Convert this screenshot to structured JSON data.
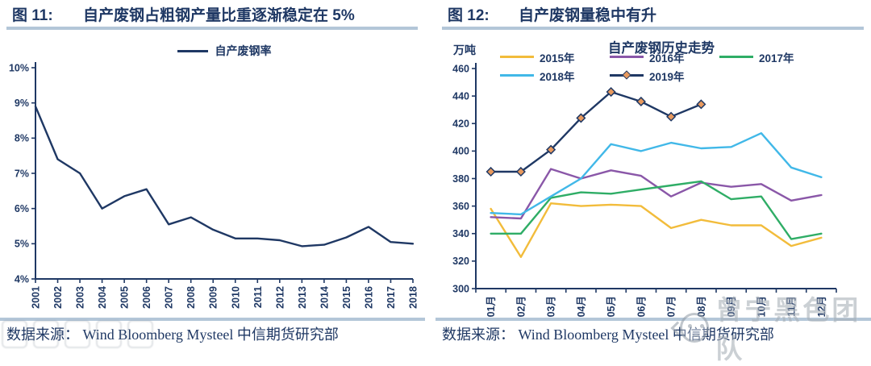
{
  "colors": {
    "navy": "#1f3864",
    "rule": "#b3c6d8",
    "gold": "#f2bc3b",
    "purple": "#8a57a8",
    "green": "#2fad66",
    "cyan": "#41b8e8",
    "diamond_fill": "#e89a5e",
    "watermark_gray": "#97a1ab"
  },
  "fig11": {
    "label": "图 11:",
    "title": "自产废钢占粗钢产量比重逐渐稳定在 5%",
    "legend_label": "自产废钢率",
    "source": "数据来源： Wind Bloomberg Mysteel 中信期货研究部"
  },
  "fig12": {
    "label": "图 12:",
    "title": "自产废钢量稳中有升",
    "unit": "万吨",
    "chart_title": "自产废钢历史走势",
    "source": "数据来源： Wind Bloomberg Mysteel 中信期货研究部",
    "watermark": "曾宁黑色团队"
  },
  "chart_data": [
    {
      "id": "fig11",
      "type": "line",
      "title": "自产废钢占粗钢产量比重逐渐稳定在 5%",
      "legend_position": "top",
      "grid": false,
      "xlabel": "",
      "ylabel": "",
      "ylim": [
        4,
        10
      ],
      "ytick_step": 1,
      "ytick_suffix": "%",
      "categories": [
        "2001",
        "2002",
        "2003",
        "2004",
        "2005",
        "2006",
        "2007",
        "2008",
        "2009",
        "2010",
        "2011",
        "2012",
        "2013",
        "2014",
        "2015",
        "2016",
        "2017",
        "2018"
      ],
      "series": [
        {
          "name": "自产废钢率",
          "color_key": "navy",
          "values": [
            8.9,
            7.4,
            7.0,
            6.0,
            6.35,
            6.55,
            5.55,
            5.75,
            5.4,
            5.15,
            5.15,
            5.1,
            4.93,
            4.97,
            5.18,
            5.48,
            5.05,
            5.0
          ]
        }
      ]
    },
    {
      "id": "fig12",
      "type": "line",
      "title": "自产废钢历史走势",
      "legend_position": "top",
      "grid": false,
      "xlabel": "",
      "ylabel": "万吨",
      "ylim": [
        300,
        460
      ],
      "ytick_step": 20,
      "ytick_suffix": "",
      "categories": [
        "01月",
        "02月",
        "03月",
        "04月",
        "05月",
        "06月",
        "07月",
        "08月",
        "09月",
        "10月",
        "11月",
        "12月"
      ],
      "series": [
        {
          "name": "2015年",
          "color_key": "gold",
          "values": [
            358,
            323,
            362,
            360,
            361,
            360,
            344,
            350,
            346,
            346,
            331,
            337
          ]
        },
        {
          "name": "2016年",
          "color_key": "purple",
          "values": [
            352,
            351,
            387,
            380,
            386,
            382,
            367,
            377,
            374,
            376,
            364,
            368
          ]
        },
        {
          "name": "2017年",
          "color_key": "green",
          "values": [
            340,
            340,
            366,
            370,
            369,
            372,
            375,
            378,
            365,
            367,
            336,
            340
          ]
        },
        {
          "name": "2018年",
          "color_key": "cyan",
          "values": [
            355,
            354,
            367,
            380,
            405,
            400,
            406,
            402,
            403,
            413,
            388,
            381
          ]
        },
        {
          "name": "2019年",
          "color_key": "navy",
          "marker": "diamond",
          "values": [
            385,
            385,
            401,
            424,
            443,
            436,
            425,
            434
          ]
        }
      ]
    }
  ]
}
